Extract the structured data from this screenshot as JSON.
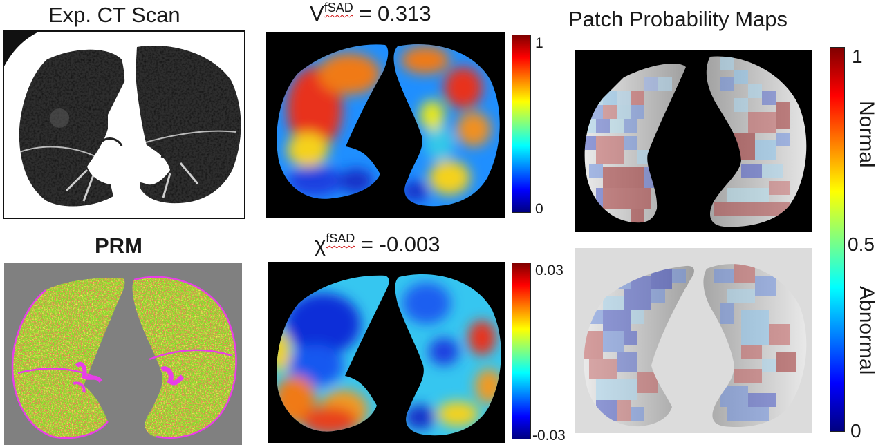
{
  "labels": {
    "ct_title": "Exp. CT Scan",
    "vfsad_base": "V",
    "vfsad_sup": "fSAD",
    "vfsad_rest": " = 0.313",
    "prm_title": "PRM",
    "chi_base": "χ",
    "chi_sup": "fSAD",
    "chi_rest": " = -0.003",
    "ppm_title": "Patch Probability Maps"
  },
  "colorbars": {
    "vfsad": {
      "max": "1",
      "min": "0"
    },
    "chi": {
      "max": "0.03",
      "min": "-0.03"
    },
    "ppm": {
      "top": "1",
      "mid": "0.5",
      "bottom": "0",
      "upper_label": "Normal",
      "lower_label": "Abnormal"
    }
  },
  "colors": {
    "prm_bg": "#808080",
    "prm_green": "#7ee02a",
    "prm_yellow": "#ece61c",
    "prm_red": "#d8321a",
    "prm_magenta": "#e83ee8",
    "ppm_bottom_bg": "#dcdcdc"
  }
}
